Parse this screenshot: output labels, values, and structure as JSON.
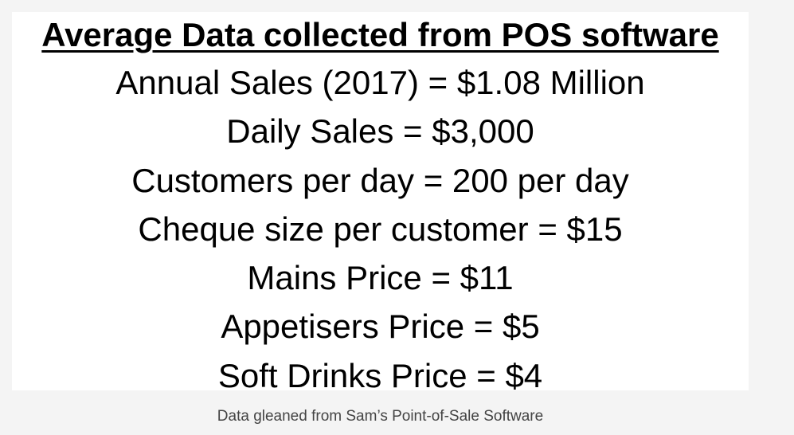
{
  "slide": {
    "title": "Average Data collected from POS software",
    "lines": [
      "Annual Sales (2017) = $1.08 Million",
      "Daily Sales = $3,000",
      "Customers per day = 200 per day",
      "Cheque size per customer = $15",
      "Mains Price = $11",
      "Appetisers Price = $5",
      "Soft Drinks Price = $4"
    ]
  },
  "caption": "Data gleaned from Sam’s Point-of-Sale Software"
}
